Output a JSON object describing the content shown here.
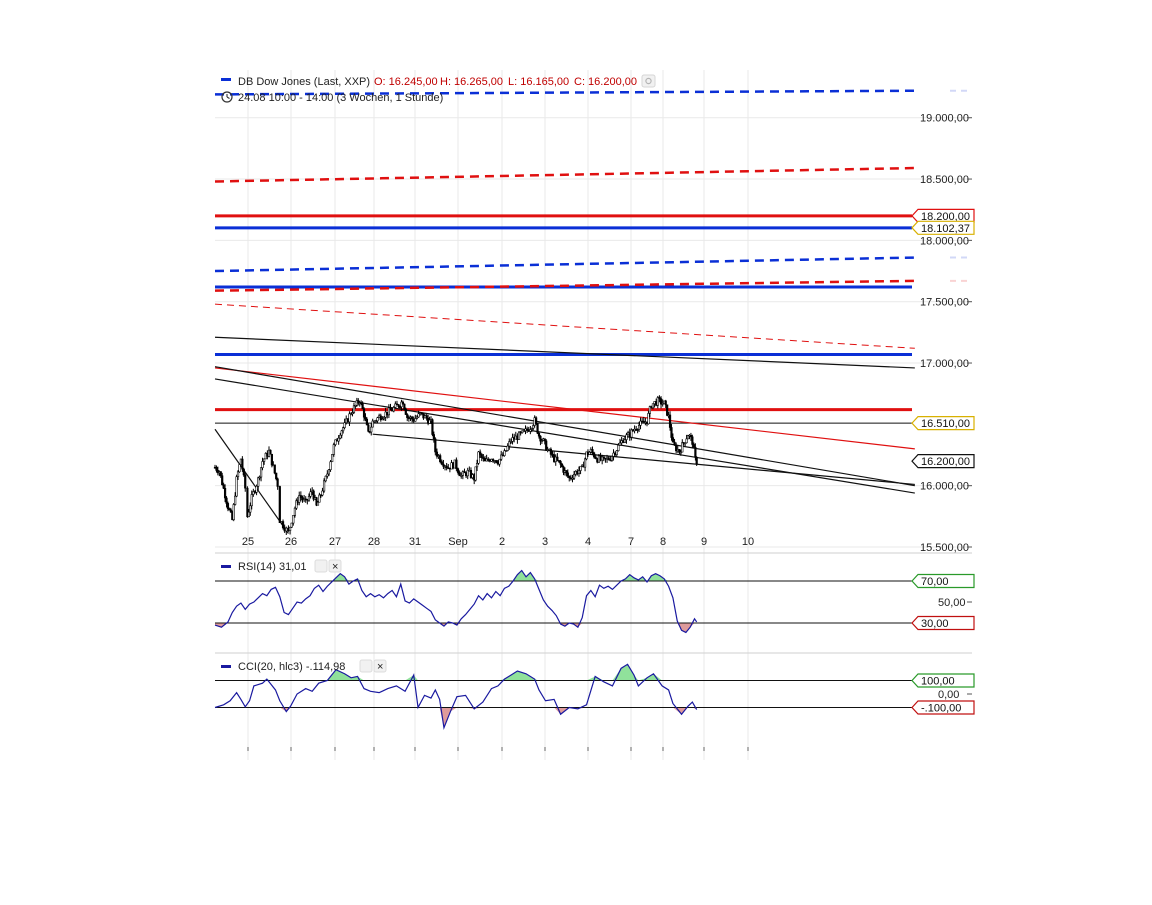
{
  "header": {
    "title": "DB Dow Jones (Last, XXP)",
    "open": "O: 16.245,00",
    "high": "H: 16.265,00",
    "low": "L: 16.165,00",
    "close": "C: 16.200,00",
    "period": "24.08 10:00 - 14:00 (3 Wochen, 1 Stunde)"
  },
  "colors": {
    "blue": "#0a2fd6",
    "red": "#e01010",
    "indicator": "#1a1aa0",
    "green_fill": "#7ddc8a",
    "red_fill": "#d98a8a",
    "tag_green": "#2a9a2a",
    "tag_red": "#c01010",
    "tag_yellow": "#d8b000",
    "grid": "#e9e9e9"
  },
  "icons": [
    "clock-icon",
    "settings-icon",
    "close-icon"
  ],
  "chart_data": [
    {
      "type": "candlestick",
      "name": "DB Dow Jones (Last, XXP)",
      "x_ticks": [
        "25",
        "26",
        "27",
        "28",
        "31",
        "Sep",
        "2",
        "3",
        "4",
        "7",
        "8",
        "9",
        "10"
      ],
      "y_ticks": [
        "19.000,00",
        "18.500,00",
        "18.000,00",
        "17.500,00",
        "17.000,00",
        "16.000,00",
        "15.500,00"
      ],
      "ylim": [
        15500,
        19200
      ],
      "price_tags": [
        {
          "label": "18.200,00",
          "value": 18200,
          "color": "red"
        },
        {
          "label": "18.102,37",
          "value": 18102.37,
          "color": "yellow"
        },
        {
          "label": "16.510,00",
          "value": 16510,
          "color": "yellow"
        },
        {
          "label": "16.200,00",
          "value": 16200,
          "color": "black"
        }
      ],
      "horizontal_lines": [
        {
          "value": 18200,
          "color": "red",
          "style": "solid"
        },
        {
          "value": 18102.37,
          "color": "blue",
          "style": "solid"
        },
        {
          "value": 17620,
          "color": "blue",
          "style": "solid"
        },
        {
          "value": 17070,
          "color": "blue",
          "style": "solid"
        },
        {
          "value": 16620,
          "color": "red",
          "style": "solid"
        },
        {
          "value": 16510,
          "color": "black",
          "style": "solid"
        }
      ],
      "trend_lines": [
        {
          "from_session": 0,
          "from": 19190,
          "to_session": 16.2,
          "to": 19220,
          "color": "blue",
          "style": "dashed"
        },
        {
          "from_session": 0,
          "from": 18480,
          "to_session": 16.2,
          "to": 18590,
          "color": "red",
          "style": "dashed"
        },
        {
          "from_session": 0,
          "from": 17750,
          "to_session": 16.2,
          "to": 17860,
          "color": "blue",
          "style": "dashed"
        },
        {
          "from_session": 0,
          "from": 17590,
          "to_session": 16.2,
          "to": 17670,
          "color": "red",
          "style": "dashed"
        },
        {
          "from_session": 0,
          "from": 17480,
          "to_session": 16.2,
          "to": 17120,
          "color": "red",
          "style": "thin-dashed"
        },
        {
          "from_session": 0,
          "from": 17210,
          "to_session": 16.2,
          "to": 16960,
          "color": "black",
          "style": "solid"
        },
        {
          "from_session": 0,
          "from": 16960,
          "to_session": 16.2,
          "to": 16300,
          "color": "red",
          "style": "solid"
        },
        {
          "from_session": 0,
          "from": 16970,
          "to_session": 16.2,
          "to": 16000,
          "color": "black",
          "style": "solid"
        },
        {
          "from_session": 0,
          "from": 16870,
          "to_session": 16.2,
          "to": 15940,
          "color": "black",
          "style": "solid"
        },
        {
          "from_session": 3.65,
          "from": 16420,
          "to_session": 16.2,
          "to": 16010,
          "color": "black",
          "style": "solid"
        },
        {
          "from_session": 0,
          "from": 16460,
          "to_session": 1.7,
          "to": 15610,
          "color": "black",
          "style": "solid"
        }
      ],
      "path": [
        [
          0,
          16150
        ],
        [
          0.1,
          16120
        ],
        [
          0.3,
          15830
        ],
        [
          0.4,
          15720
        ],
        [
          0.5,
          16050
        ],
        [
          0.6,
          16220
        ],
        [
          0.7,
          15980
        ],
        [
          0.75,
          15750
        ],
        [
          0.85,
          15900
        ],
        [
          1.0,
          16050
        ],
        [
          1.1,
          16200
        ],
        [
          1.25,
          16280
        ],
        [
          1.35,
          16150
        ],
        [
          1.45,
          16010
        ],
        [
          1.5,
          15720
        ],
        [
          1.65,
          15640
        ],
        [
          1.7,
          15620
        ],
        [
          1.85,
          15820
        ],
        [
          1.95,
          15920
        ],
        [
          2.1,
          15860
        ],
        [
          2.25,
          15960
        ],
        [
          2.35,
          15830
        ],
        [
          2.45,
          15930
        ],
        [
          2.6,
          16100
        ],
        [
          2.75,
          16320
        ],
        [
          2.9,
          16440
        ],
        [
          3.0,
          16490
        ],
        [
          3.15,
          16600
        ],
        [
          3.25,
          16650
        ],
        [
          3.35,
          16700
        ],
        [
          3.45,
          16580
        ],
        [
          3.55,
          16420
        ],
        [
          3.65,
          16520
        ],
        [
          3.8,
          16560
        ],
        [
          3.95,
          16590
        ],
        [
          4.1,
          16620
        ],
        [
          4.25,
          16660
        ],
        [
          4.35,
          16690
        ],
        [
          4.45,
          16560
        ],
        [
          4.6,
          16540
        ],
        [
          4.75,
          16580
        ],
        [
          4.9,
          16550
        ],
        [
          5.0,
          16510
        ],
        [
          5.1,
          16280
        ],
        [
          5.25,
          16200
        ],
        [
          5.4,
          16150
        ],
        [
          5.55,
          16180
        ],
        [
          5.7,
          16080
        ],
        [
          5.85,
          16110
        ],
        [
          6.0,
          16060
        ],
        [
          6.1,
          16260
        ],
        [
          6.25,
          16190
        ],
        [
          6.4,
          16230
        ],
        [
          6.55,
          16200
        ],
        [
          6.7,
          16260
        ],
        [
          6.85,
          16370
        ],
        [
          7.0,
          16400
        ],
        [
          7.15,
          16430
        ],
        [
          7.3,
          16480
        ],
        [
          7.4,
          16530
        ],
        [
          7.5,
          16410
        ],
        [
          7.6,
          16360
        ],
        [
          7.7,
          16290
        ],
        [
          7.85,
          16220
        ],
        [
          8.0,
          16170
        ],
        [
          8.1,
          16110
        ],
        [
          8.2,
          16060
        ],
        [
          8.35,
          16110
        ],
        [
          8.5,
          16140
        ],
        [
          8.6,
          16260
        ],
        [
          8.7,
          16280
        ],
        [
          8.85,
          16220
        ],
        [
          9.0,
          16200
        ],
        [
          9.15,
          16230
        ],
        [
          9.3,
          16300
        ],
        [
          9.45,
          16380
        ],
        [
          9.6,
          16420
        ],
        [
          9.75,
          16480
        ],
        [
          9.85,
          16500
        ],
        [
          10.0,
          16530
        ],
        [
          10.1,
          16660
        ],
        [
          10.25,
          16690
        ],
        [
          10.4,
          16670
        ],
        [
          10.5,
          16560
        ],
        [
          10.6,
          16330
        ],
        [
          10.75,
          16280
        ],
        [
          10.85,
          16350
        ],
        [
          10.95,
          16420
        ],
        [
          11.05,
          16360
        ],
        [
          11.12,
          16210
        ],
        [
          11.15,
          16200
        ]
      ]
    },
    {
      "type": "line",
      "name": "RSI(14)",
      "last_value": "31,01",
      "levels": [
        {
          "label": "70,00",
          "value": 70,
          "color": "green"
        },
        {
          "label": "30,00",
          "value": 30,
          "color": "red"
        }
      ],
      "y_ticks": [
        "50,00"
      ],
      "ylim": [
        10,
        90
      ],
      "path": [
        [
          0,
          28
        ],
        [
          0.15,
          26
        ],
        [
          0.3,
          31
        ],
        [
          0.4,
          40
        ],
        [
          0.5,
          46
        ],
        [
          0.6,
          49
        ],
        [
          0.7,
          43
        ],
        [
          0.8,
          48
        ],
        [
          0.9,
          50
        ],
        [
          1.0,
          54
        ],
        [
          1.1,
          58
        ],
        [
          1.2,
          56
        ],
        [
          1.3,
          62
        ],
        [
          1.4,
          64
        ],
        [
          1.5,
          55
        ],
        [
          1.6,
          40
        ],
        [
          1.7,
          38
        ],
        [
          1.8,
          44
        ],
        [
          1.9,
          50
        ],
        [
          2.0,
          49
        ],
        [
          2.1,
          53
        ],
        [
          2.2,
          56
        ],
        [
          2.3,
          63
        ],
        [
          2.4,
          66
        ],
        [
          2.5,
          60
        ],
        [
          2.6,
          65
        ],
        [
          2.7,
          69
        ],
        [
          2.8,
          73
        ],
        [
          2.9,
          77
        ],
        [
          3.0,
          74
        ],
        [
          3.1,
          67
        ],
        [
          3.2,
          70
        ],
        [
          3.3,
          72
        ],
        [
          3.4,
          61
        ],
        [
          3.5,
          55
        ],
        [
          3.6,
          58
        ],
        [
          3.7,
          55
        ],
        [
          3.8,
          57
        ],
        [
          3.9,
          54
        ],
        [
          4.0,
          58
        ],
        [
          4.1,
          61
        ],
        [
          4.2,
          55
        ],
        [
          4.3,
          67
        ],
        [
          4.4,
          51
        ],
        [
          4.5,
          49
        ],
        [
          4.6,
          53
        ],
        [
          4.7,
          50
        ],
        [
          4.8,
          47
        ],
        [
          4.9,
          44
        ],
        [
          5.0,
          41
        ],
        [
          5.1,
          33
        ],
        [
          5.2,
          30
        ],
        [
          5.3,
          27
        ],
        [
          5.4,
          31
        ],
        [
          5.5,
          30
        ],
        [
          5.6,
          28
        ],
        [
          5.7,
          34
        ],
        [
          5.8,
          38
        ],
        [
          5.9,
          43
        ],
        [
          6.0,
          48
        ],
        [
          6.1,
          56
        ],
        [
          6.2,
          52
        ],
        [
          6.3,
          58
        ],
        [
          6.4,
          54
        ],
        [
          6.5,
          60
        ],
        [
          6.6,
          56
        ],
        [
          6.7,
          63
        ],
        [
          6.8,
          65
        ],
        [
          6.9,
          70
        ],
        [
          7.0,
          76
        ],
        [
          7.1,
          80
        ],
        [
          7.2,
          74
        ],
        [
          7.3,
          78
        ],
        [
          7.4,
          72
        ],
        [
          7.5,
          62
        ],
        [
          7.6,
          52
        ],
        [
          7.7,
          46
        ],
        [
          7.8,
          42
        ],
        [
          7.9,
          37
        ],
        [
          8.0,
          29
        ],
        [
          8.1,
          27
        ],
        [
          8.2,
          30
        ],
        [
          8.3,
          29
        ],
        [
          8.4,
          26
        ],
        [
          8.5,
          35
        ],
        [
          8.6,
          56
        ],
        [
          8.7,
          61
        ],
        [
          8.8,
          55
        ],
        [
          8.9,
          66
        ],
        [
          9.0,
          63
        ],
        [
          9.1,
          65
        ],
        [
          9.2,
          62
        ],
        [
          9.3,
          66
        ],
        [
          9.4,
          70
        ],
        [
          9.5,
          72
        ],
        [
          9.6,
          76
        ],
        [
          9.7,
          73
        ],
        [
          9.8,
          71
        ],
        [
          9.9,
          74
        ],
        [
          10.0,
          69
        ],
        [
          10.1,
          75
        ],
        [
          10.2,
          77
        ],
        [
          10.3,
          75
        ],
        [
          10.4,
          72
        ],
        [
          10.5,
          65
        ],
        [
          10.6,
          54
        ],
        [
          10.7,
          32
        ],
        [
          10.8,
          23
        ],
        [
          10.9,
          21
        ],
        [
          11.0,
          26
        ],
        [
          11.1,
          34
        ],
        [
          11.15,
          31
        ]
      ]
    },
    {
      "type": "line",
      "name": "CCI(20, hlc3)",
      "last_value": "-.114,98",
      "levels": [
        {
          "label": "100,00",
          "value": 100,
          "color": "green"
        },
        {
          "label": "-.100,00",
          "value": -100,
          "color": "red"
        }
      ],
      "y_ticks": [
        "0,00"
      ],
      "ylim": [
        -320,
        260
      ],
      "path": [
        [
          0,
          -100
        ],
        [
          0.2,
          -80
        ],
        [
          0.35,
          -50
        ],
        [
          0.5,
          10
        ],
        [
          0.6,
          -40
        ],
        [
          0.7,
          -95
        ],
        [
          0.8,
          -50
        ],
        [
          0.9,
          60
        ],
        [
          1.0,
          70
        ],
        [
          1.1,
          80
        ],
        [
          1.2,
          110
        ],
        [
          1.3,
          70
        ],
        [
          1.4,
          30
        ],
        [
          1.5,
          -50
        ],
        [
          1.65,
          -130
        ],
        [
          1.75,
          -90
        ],
        [
          1.9,
          0
        ],
        [
          2.1,
          40
        ],
        [
          2.25,
          20
        ],
        [
          2.4,
          80
        ],
        [
          2.6,
          100
        ],
        [
          2.8,
          180
        ],
        [
          3.0,
          150
        ],
        [
          3.15,
          120
        ],
        [
          3.3,
          130
        ],
        [
          3.45,
          40
        ],
        [
          3.6,
          20
        ],
        [
          3.8,
          10
        ],
        [
          4.0,
          40
        ],
        [
          4.2,
          60
        ],
        [
          4.4,
          20
        ],
        [
          4.6,
          140
        ],
        [
          4.7,
          -100
        ],
        [
          4.85,
          -10
        ],
        [
          5.0,
          -30
        ],
        [
          5.1,
          30
        ],
        [
          5.2,
          -40
        ],
        [
          5.3,
          -250
        ],
        [
          5.45,
          -130
        ],
        [
          5.6,
          -20
        ],
        [
          5.8,
          -10
        ],
        [
          6.0,
          -110
        ],
        [
          6.2,
          -60
        ],
        [
          6.4,
          40
        ],
        [
          6.55,
          60
        ],
        [
          6.7,
          110
        ],
        [
          6.85,
          140
        ],
        [
          7.0,
          170
        ],
        [
          7.2,
          150
        ],
        [
          7.4,
          110
        ],
        [
          7.5,
          30
        ],
        [
          7.65,
          -50
        ],
        [
          7.85,
          -40
        ],
        [
          8.0,
          -150
        ],
        [
          8.2,
          -100
        ],
        [
          8.4,
          -110
        ],
        [
          8.6,
          -80
        ],
        [
          8.8,
          130
        ],
        [
          9.0,
          90
        ],
        [
          9.2,
          60
        ],
        [
          9.4,
          190
        ],
        [
          9.55,
          220
        ],
        [
          9.7,
          140
        ],
        [
          9.8,
          60
        ],
        [
          10.0,
          120
        ],
        [
          10.15,
          150
        ],
        [
          10.35,
          60
        ],
        [
          10.5,
          30
        ],
        [
          10.6,
          -70
        ],
        [
          10.8,
          -150
        ],
        [
          10.95,
          -90
        ],
        [
          11.05,
          -60
        ],
        [
          11.15,
          -115
        ]
      ]
    }
  ]
}
